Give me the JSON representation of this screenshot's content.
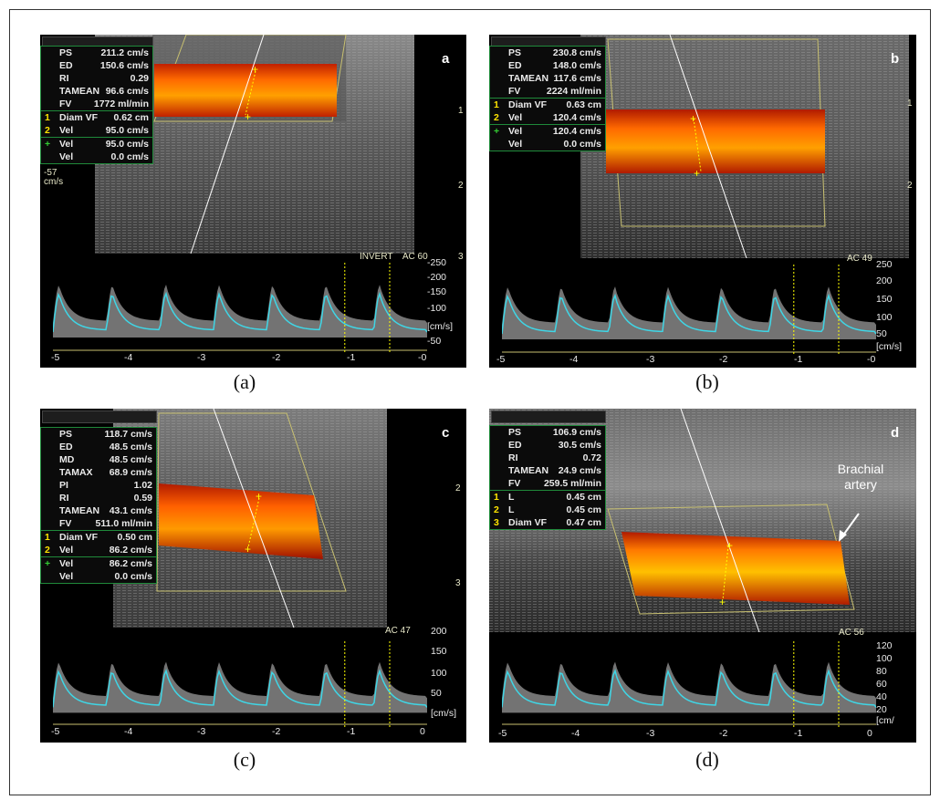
{
  "panels": {
    "a": {
      "tag": "a",
      "caption": "(a)",
      "rows": [
        {
          "k": "",
          "l": "PS",
          "v": "211.2 cm/s"
        },
        {
          "k": "",
          "l": "ED",
          "v": "150.6 cm/s"
        },
        {
          "k": "",
          "l": "RI",
          "v": "0.29"
        },
        {
          "k": "",
          "l": "TAMEAN",
          "v": "96.6 cm/s"
        },
        {
          "k": "",
          "l": "FV",
          "v": "1772 ml/min"
        },
        {
          "k": "1",
          "l": "Diam VF",
          "v": "0.62 cm"
        },
        {
          "k": "2",
          "l": "Vel",
          "v": "95.0 cm/s"
        },
        {
          "k": "+",
          "l": "Vel",
          "v": "95.0 cm/s"
        },
        {
          "k": "",
          "l": "Vel",
          "v": "0.0 cm/s"
        }
      ],
      "scale_note": "-57\ncm/s",
      "header_note": "INVERT    AC 60",
      "depth_ticks": [
        "1",
        "2",
        "3"
      ],
      "y_ticks": [
        "-250",
        "-200",
        "-150",
        "-100",
        "[cm/s]",
        "-50"
      ],
      "x_ticks": [
        "-5",
        "-4",
        "-3",
        "-2",
        "-1",
        "-0"
      ]
    },
    "b": {
      "tag": "b",
      "caption": "(b)",
      "rows": [
        {
          "k": "",
          "l": "PS",
          "v": "230.8 cm/s"
        },
        {
          "k": "",
          "l": "ED",
          "v": "148.0 cm/s"
        },
        {
          "k": "",
          "l": "TAMEAN",
          "v": "117.6 cm/s"
        },
        {
          "k": "",
          "l": "FV",
          "v": "2224 ml/min"
        },
        {
          "k": "1",
          "l": "Diam VF",
          "v": "0.63 cm"
        },
        {
          "k": "2",
          "l": "Vel",
          "v": "120.4 cm/s"
        },
        {
          "k": "+",
          "l": "Vel",
          "v": "120.4 cm/s"
        },
        {
          "k": "",
          "l": "Vel",
          "v": "0.0 cm/s"
        }
      ],
      "header_note": "AC 49",
      "depth_ticks": [
        "1",
        "2"
      ],
      "y_ticks": [
        "250",
        "200",
        "150",
        "100",
        "50",
        "[cm/s]"
      ],
      "x_ticks": [
        "-5",
        "-4",
        "-3",
        "-2",
        "-1",
        "-0"
      ]
    },
    "c": {
      "tag": "c",
      "caption": "(c)",
      "rows": [
        {
          "k": "",
          "l": "PS",
          "v": "118.7 cm/s"
        },
        {
          "k": "",
          "l": "ED",
          "v": "48.5 cm/s"
        },
        {
          "k": "",
          "l": "MD",
          "v": "48.5 cm/s"
        },
        {
          "k": "",
          "l": "TAMAX",
          "v": "68.9 cm/s"
        },
        {
          "k": "",
          "l": "PI",
          "v": "1.02"
        },
        {
          "k": "",
          "l": "RI",
          "v": "0.59"
        },
        {
          "k": "",
          "l": "TAMEAN",
          "v": "43.1 cm/s"
        },
        {
          "k": "",
          "l": "FV",
          "v": "511.0 ml/min"
        },
        {
          "k": "1",
          "l": "Diam VF",
          "v": "0.50 cm"
        },
        {
          "k": "2",
          "l": "Vel",
          "v": "86.2 cm/s"
        },
        {
          "k": "+",
          "l": "Vel",
          "v": "86.2 cm/s"
        },
        {
          "k": "",
          "l": "Vel",
          "v": "0.0 cm/s"
        }
      ],
      "header_note": "AC 47",
      "depth_ticks": [
        "2",
        "3"
      ],
      "y_ticks": [
        "200",
        "150",
        "100",
        "50",
        "[cm/s]"
      ],
      "x_ticks": [
        "-5",
        "-4",
        "-3",
        "-2",
        "-1",
        "0"
      ]
    },
    "d": {
      "tag": "d",
      "caption": "(d)",
      "rows": [
        {
          "k": "",
          "l": "PS",
          "v": "106.9 cm/s"
        },
        {
          "k": "",
          "l": "ED",
          "v": "30.5 cm/s"
        },
        {
          "k": "",
          "l": "RI",
          "v": "0.72"
        },
        {
          "k": "",
          "l": "TAMEAN",
          "v": "24.9 cm/s"
        },
        {
          "k": "",
          "l": "FV",
          "v": "259.5 ml/min"
        },
        {
          "k": "1",
          "l": "L",
          "v": "0.45 cm"
        },
        {
          "k": "2",
          "l": "L",
          "v": "0.45 cm"
        },
        {
          "k": "3",
          "l": "Diam VF",
          "v": "0.47 cm"
        }
      ],
      "annotation": "Brachial\nartery",
      "header_note": "AC 56",
      "y_ticks": [
        "120",
        "100",
        "80",
        "60",
        "40",
        "20",
        "[cm/"
      ],
      "x_ticks": [
        "-5",
        "-4",
        "-3",
        "-2",
        "-1",
        "0"
      ]
    }
  },
  "colors": {
    "flow": "#ff5a00",
    "flow_core": "#ffb400",
    "trace": "#3fd6e6",
    "marker": "#ffff00",
    "box_border": "#1f8a3a"
  }
}
